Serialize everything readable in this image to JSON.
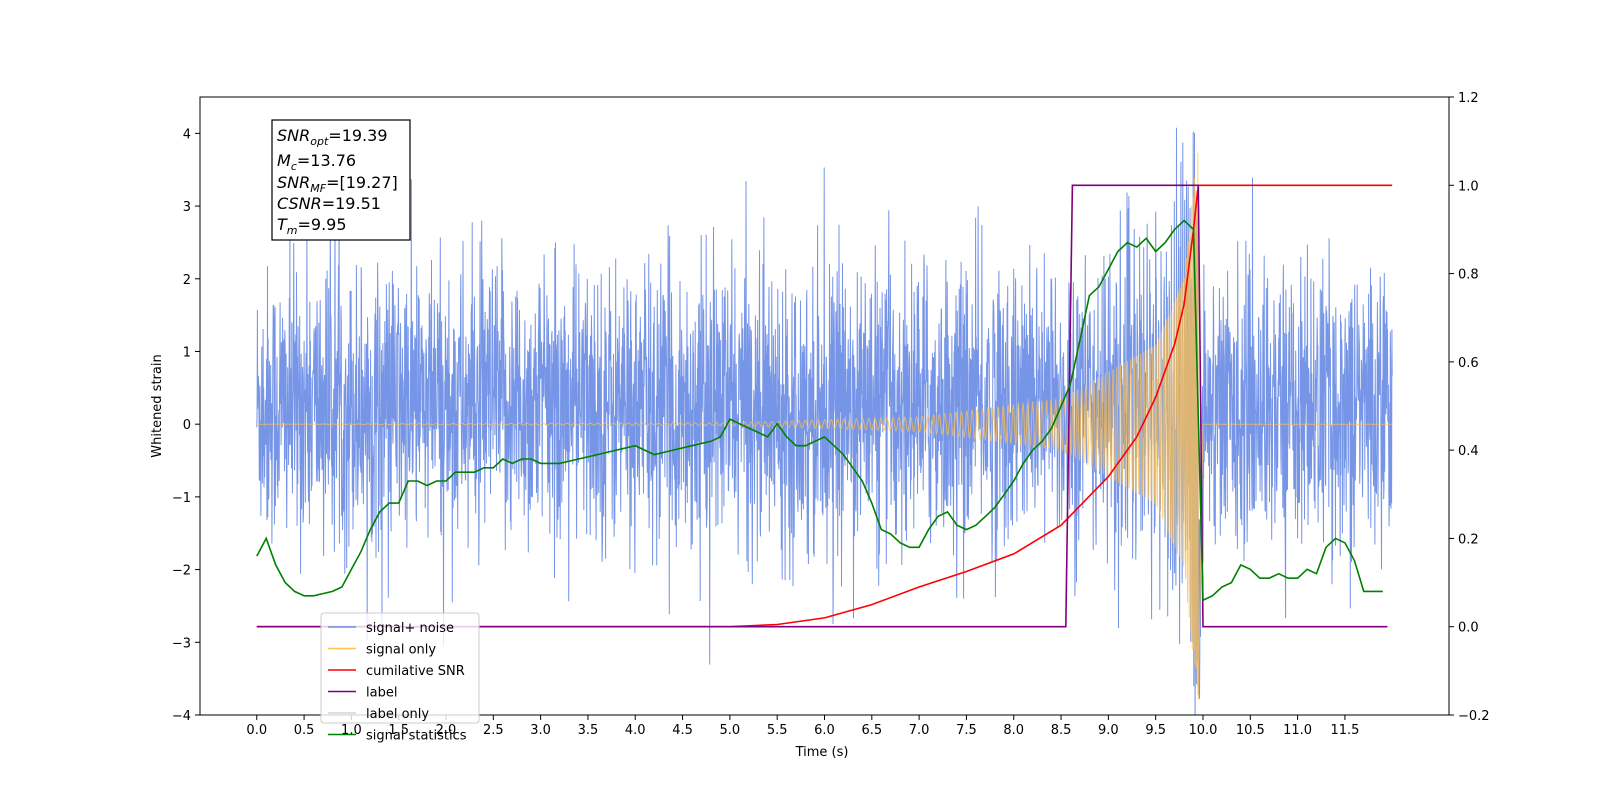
{
  "chart_data": {
    "type": "line",
    "title": "",
    "xlabel": "Time (s)",
    "ylabel": "Whitened strain",
    "y2label": "",
    "xlim": [
      -0.6,
      12.6
    ],
    "ylim": [
      -4,
      4.5
    ],
    "y2lim": [
      -0.2,
      1.2
    ],
    "x_ticks": [
      "0.0",
      "0.5",
      "1.0",
      "1.5",
      "2.0",
      "2.5",
      "3.0",
      "3.5",
      "4.0",
      "4.5",
      "5.0",
      "5.5",
      "6.0",
      "6.5",
      "7.0",
      "7.5",
      "8.0",
      "8.5",
      "9.0",
      "9.5",
      "10.0",
      "10.5",
      "11.0",
      "11.5"
    ],
    "y_ticks": [
      "4",
      "3",
      "2",
      "1",
      "0",
      "−1",
      "−2",
      "−3",
      "−4"
    ],
    "y2_ticks": [
      "1.2",
      "1.0",
      "0.8",
      "0.6",
      "0.4",
      "0.2",
      "0.0",
      "−0.2"
    ],
    "grid": false,
    "legend_placement": "lower-left",
    "info_box": {
      "placement": "upper-left",
      "lines": [
        {
          "sym": "SNR",
          "sub": "opt",
          "val": "=19.39"
        },
        {
          "sym": "M",
          "sub": "c",
          "val": "=13.76"
        },
        {
          "sym": "SNR",
          "sub": "MF",
          "val": "=[19.27]"
        },
        {
          "sym": "CSNR",
          "sub": "",
          "val": "=19.51"
        },
        {
          "sym": "T",
          "sub": "m",
          "val": "=9.95"
        }
      ]
    },
    "series": [
      {
        "name": "signal+ noise",
        "color": "#6f8fe6",
        "axis": "left",
        "kind": "noise",
        "x_range": [
          0.0,
          12.0
        ],
        "amplitude_range": [
          -3.7,
          4.1
        ],
        "typical_band": [
          -1.9,
          2.6
        ]
      },
      {
        "name": "signal only",
        "color": "#ffc04d",
        "axis": "left",
        "kind": "chirp",
        "x_range": [
          0.0,
          12.0
        ],
        "merger_time": 9.95,
        "peak_amplitude": 3.9,
        "envelope": [
          [
            0.0,
            0.0
          ],
          [
            5.0,
            0.02
          ],
          [
            7.0,
            0.1
          ],
          [
            8.5,
            0.35
          ],
          [
            9.5,
            1.1
          ],
          [
            9.8,
            2.0
          ],
          [
            9.95,
            3.9
          ],
          [
            10.0,
            0.0
          ],
          [
            12.0,
            0.0
          ]
        ]
      },
      {
        "name": "cumilative SNR",
        "color": "#ff0000",
        "axis": "right",
        "x": [
          0.0,
          5.0,
          5.5,
          6.0,
          6.5,
          7.0,
          7.5,
          8.0,
          8.5,
          9.0,
          9.3,
          9.5,
          9.7,
          9.8,
          9.9,
          9.95,
          10.0,
          12.0
        ],
        "y": [
          0.0,
          0.0,
          0.005,
          0.02,
          0.05,
          0.09,
          0.125,
          0.165,
          0.23,
          0.34,
          0.43,
          0.52,
          0.64,
          0.73,
          0.9,
          1.0,
          1.0,
          1.0
        ]
      },
      {
        "name": "label",
        "color": "#800080",
        "axis": "right",
        "x": [
          0.0,
          8.55,
          8.62,
          9.95,
          10.0,
          11.95
        ],
        "y": [
          0.0,
          0.0,
          1.0,
          1.0,
          0.0,
          0.0
        ]
      },
      {
        "name": "label only",
        "color": "#d3d3d3",
        "axis": "right",
        "x": [],
        "y": []
      },
      {
        "name": "signal statistics",
        "color": "#008000",
        "axis": "right",
        "x": [
          0.0,
          0.1,
          0.2,
          0.3,
          0.4,
          0.5,
          0.6,
          0.7,
          0.8,
          0.9,
          1.0,
          1.1,
          1.2,
          1.3,
          1.4,
          1.5,
          1.6,
          1.7,
          1.8,
          1.9,
          2.0,
          2.1,
          2.2,
          2.3,
          2.4,
          2.5,
          2.6,
          2.7,
          2.8,
          2.9,
          3.0,
          3.2,
          3.4,
          3.6,
          3.8,
          4.0,
          4.2,
          4.4,
          4.6,
          4.8,
          4.9,
          5.0,
          5.1,
          5.2,
          5.3,
          5.4,
          5.5,
          5.6,
          5.7,
          5.8,
          5.9,
          6.0,
          6.1,
          6.2,
          6.3,
          6.4,
          6.5,
          6.6,
          6.7,
          6.8,
          6.9,
          7.0,
          7.1,
          7.2,
          7.3,
          7.4,
          7.5,
          7.6,
          7.7,
          7.8,
          7.9,
          8.0,
          8.1,
          8.2,
          8.3,
          8.4,
          8.5,
          8.6,
          8.7,
          8.8,
          8.9,
          9.0,
          9.1,
          9.2,
          9.3,
          9.4,
          9.5,
          9.6,
          9.7,
          9.8,
          9.9,
          10.0,
          10.1,
          10.2,
          10.3,
          10.4,
          10.5,
          10.6,
          10.7,
          10.8,
          10.9,
          11.0,
          11.1,
          11.2,
          11.3,
          11.4,
          11.5,
          11.6,
          11.7,
          11.8,
          11.9
        ],
        "y": [
          0.16,
          0.2,
          0.14,
          0.1,
          0.08,
          0.07,
          0.07,
          0.075,
          0.08,
          0.09,
          0.13,
          0.17,
          0.22,
          0.26,
          0.28,
          0.28,
          0.33,
          0.33,
          0.32,
          0.33,
          0.33,
          0.35,
          0.35,
          0.35,
          0.36,
          0.36,
          0.38,
          0.37,
          0.38,
          0.38,
          0.37,
          0.37,
          0.38,
          0.39,
          0.4,
          0.41,
          0.39,
          0.4,
          0.41,
          0.42,
          0.43,
          0.47,
          0.46,
          0.45,
          0.44,
          0.43,
          0.46,
          0.43,
          0.41,
          0.41,
          0.42,
          0.43,
          0.41,
          0.39,
          0.36,
          0.33,
          0.28,
          0.22,
          0.21,
          0.19,
          0.18,
          0.18,
          0.22,
          0.25,
          0.26,
          0.23,
          0.22,
          0.23,
          0.25,
          0.27,
          0.3,
          0.33,
          0.37,
          0.4,
          0.42,
          0.45,
          0.5,
          0.55,
          0.65,
          0.75,
          0.77,
          0.81,
          0.85,
          0.87,
          0.86,
          0.88,
          0.85,
          0.87,
          0.9,
          0.92,
          0.9,
          0.06,
          0.07,
          0.09,
          0.1,
          0.14,
          0.13,
          0.11,
          0.11,
          0.12,
          0.11,
          0.11,
          0.13,
          0.12,
          0.18,
          0.2,
          0.19,
          0.15,
          0.08,
          0.08,
          0.08
        ]
      }
    ]
  }
}
